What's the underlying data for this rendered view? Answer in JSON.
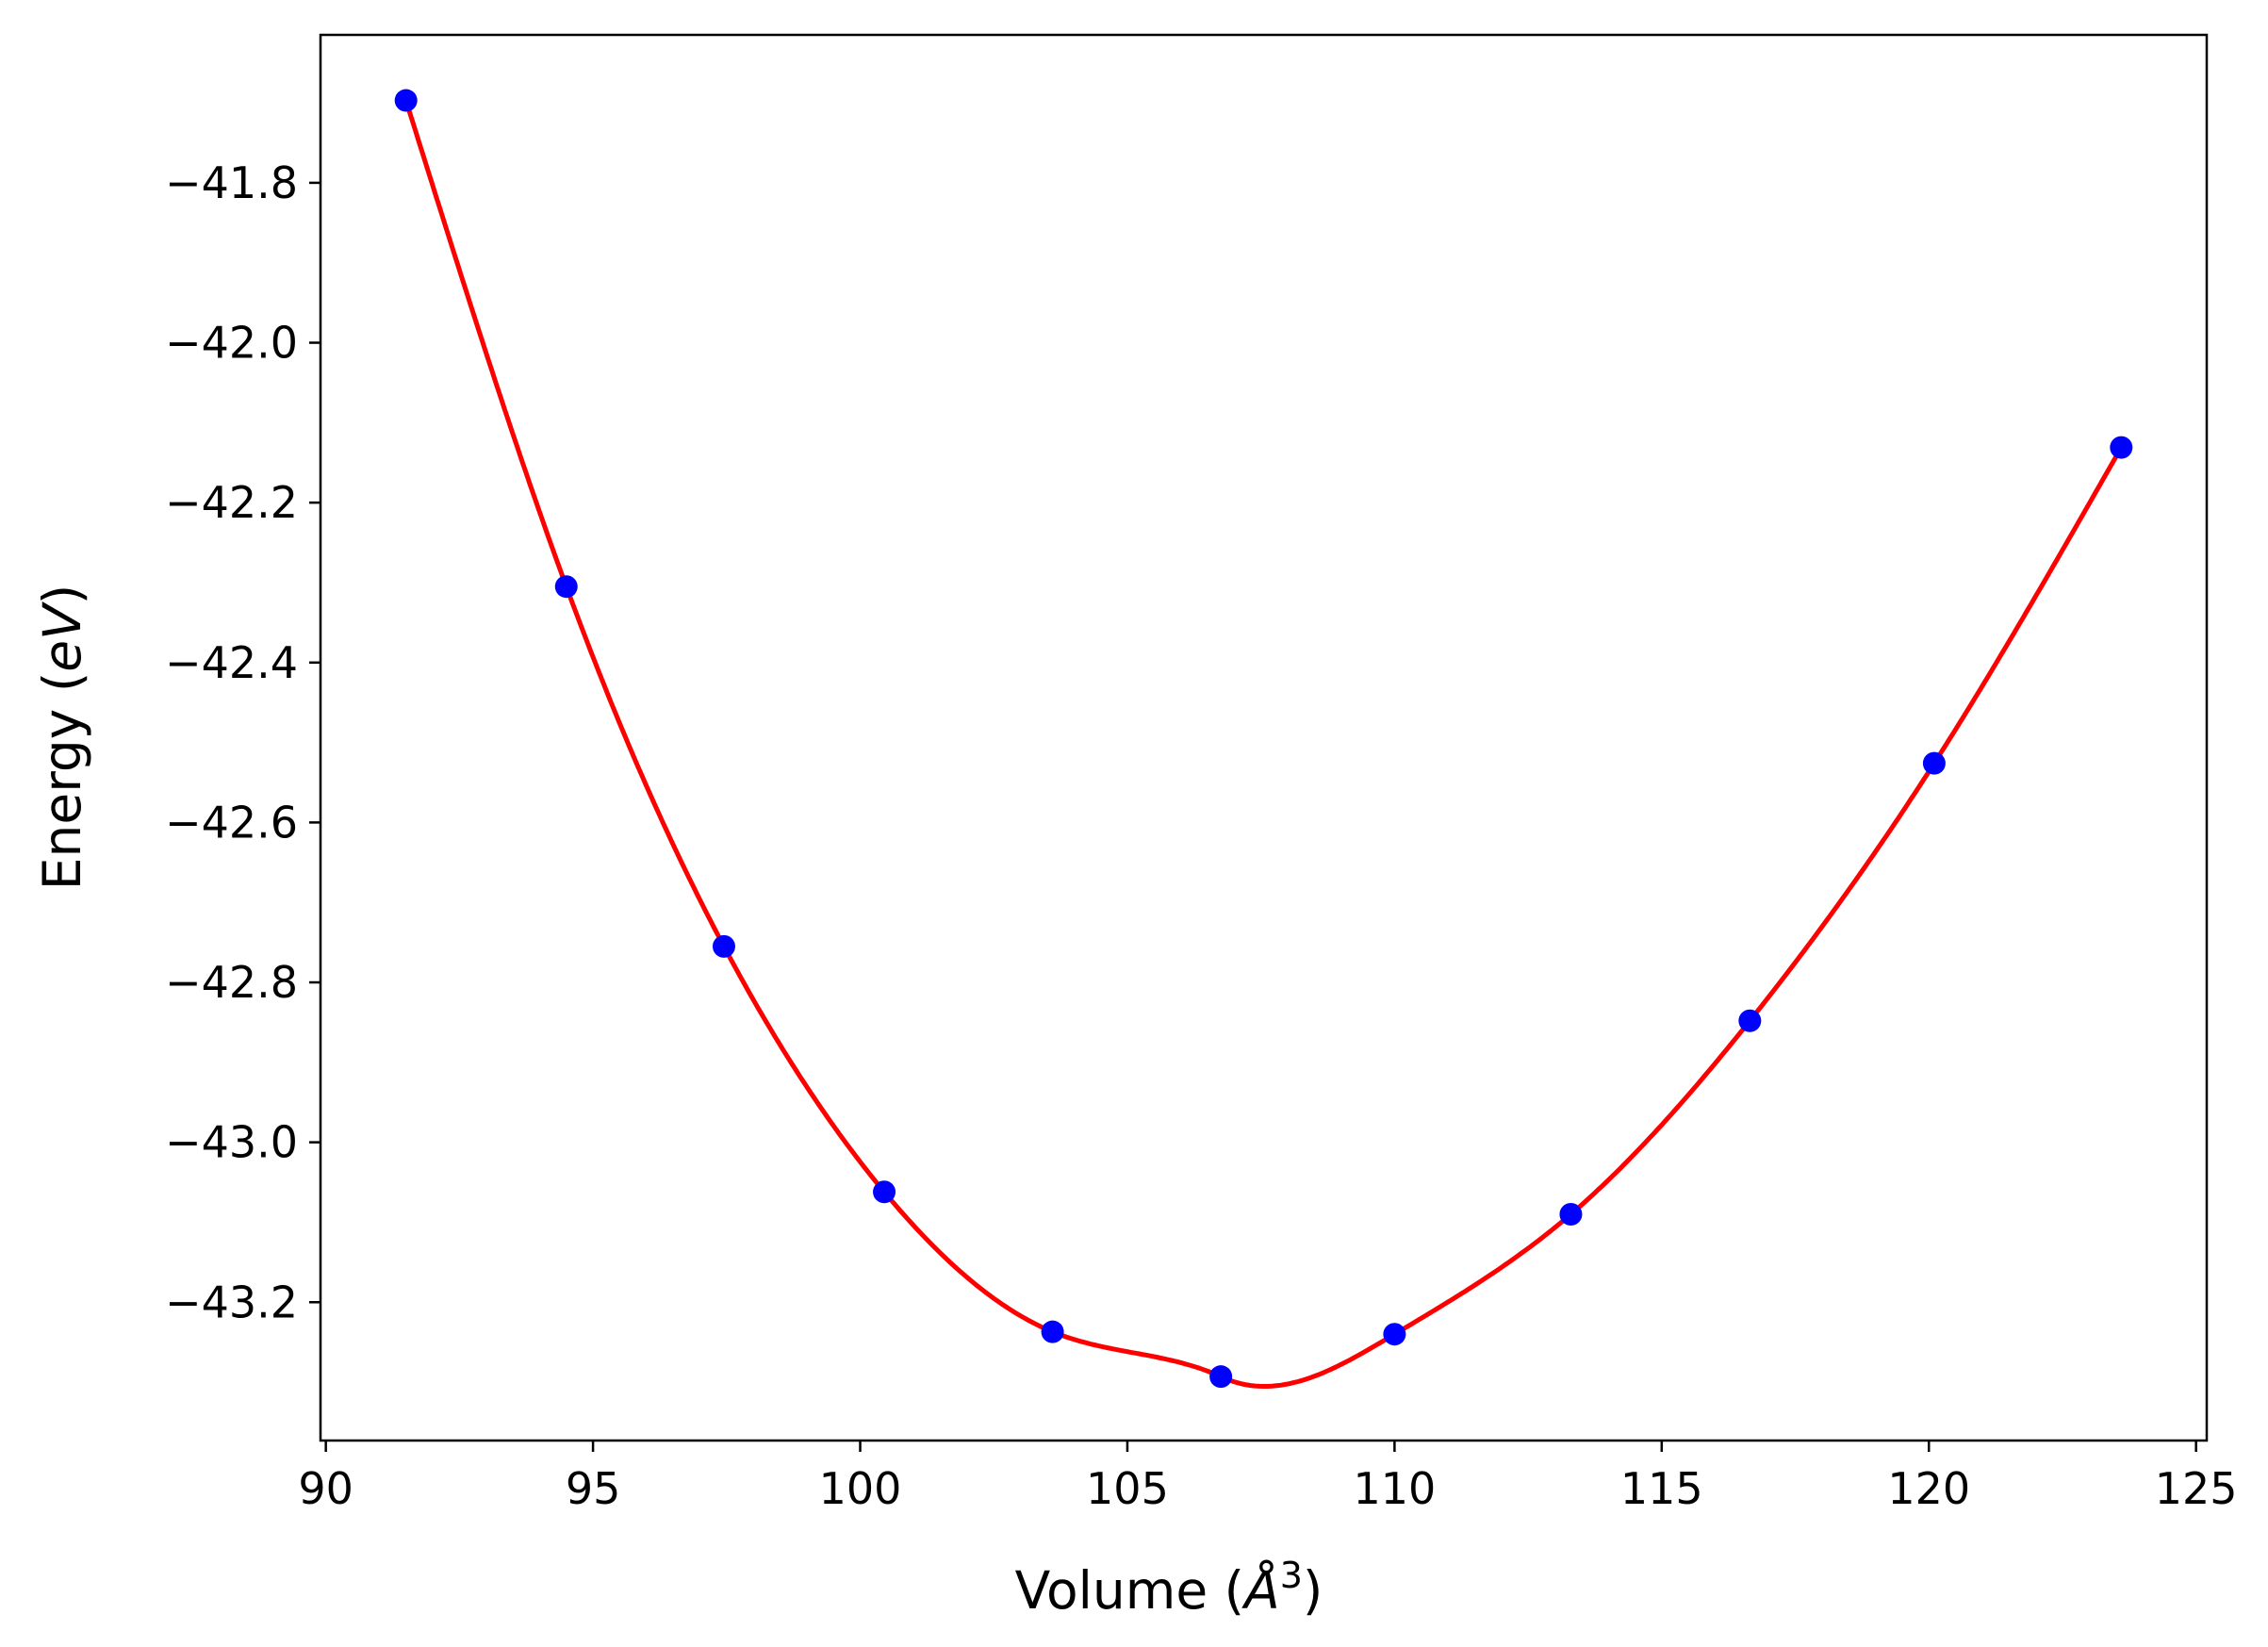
{
  "chart_data": {
    "type": "line",
    "title": "",
    "xlabel": "Volume (",
    "xlabel_symbol": "Å",
    "xlabel_superscript": "3",
    "xlabel_suffix": ")",
    "ylabel": "Energy (",
    "ylabel_unit": "eV",
    "ylabel_suffix": ")",
    "xlim": [
      89.9,
      125.2
    ],
    "ylim": [
      -43.373,
      -41.615
    ],
    "xticks": [
      90,
      95,
      100,
      105,
      110,
      115,
      120,
      125
    ],
    "xtick_labels": [
      "90",
      "95",
      "100",
      "105",
      "110",
      "115",
      "120",
      "125"
    ],
    "yticks": [
      -41.8,
      -42.0,
      -42.2,
      -42.4,
      -42.6,
      -42.8,
      -43.0,
      -43.2
    ],
    "ytick_labels": [
      "−41.8",
      "−42.0",
      "−42.2",
      "−42.4",
      "−42.6",
      "−42.8",
      "−43.0",
      "−43.2"
    ],
    "grid": false,
    "legend": "none",
    "series": [
      {
        "kind": "points",
        "color": "#0000ff",
        "x": [
          91.5,
          94.5,
          97.45,
          100.45,
          103.6,
          106.75,
          110.0,
          113.3,
          116.65,
          120.1,
          123.6
        ],
        "y": [
          -41.697,
          -42.305,
          -42.755,
          -43.062,
          -43.237,
          -43.293,
          -43.24,
          -43.09,
          -42.848,
          -42.526,
          -42.131
        ]
      },
      {
        "kind": "fit-curve",
        "color": "#ff0000",
        "x_range": [
          91.5,
          123.6
        ],
        "minimum": {
          "x": 106.8,
          "y": -43.2945
        }
      }
    ]
  }
}
